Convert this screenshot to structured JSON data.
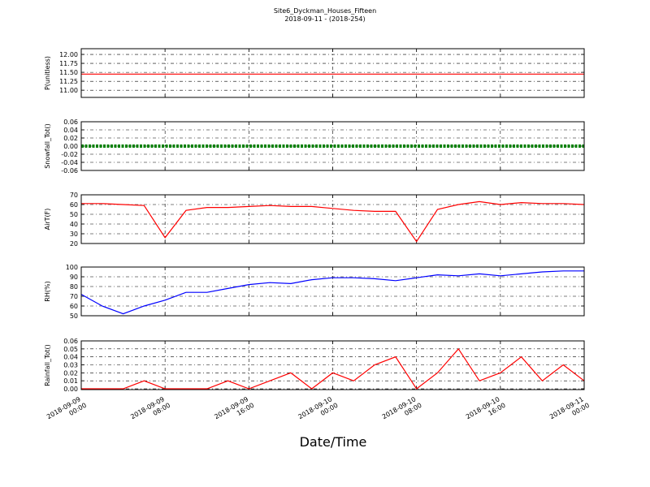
{
  "chart_data": [
    {
      "type": "line",
      "title": "Site6_Dyckman_Houses_Fifteen",
      "subtitle": "2018-09-11 - (2018-254)",
      "ylabel": "P(unitless)",
      "color": "#ff0000",
      "x": [
        "2018-09-09 00:00",
        "2018-09-09 02:00",
        "2018-09-09 04:00",
        "2018-09-09 06:00",
        "2018-09-09 08:00",
        "2018-09-09 10:00",
        "2018-09-09 12:00",
        "2018-09-09 14:00",
        "2018-09-09 16:00",
        "2018-09-09 18:00",
        "2018-09-09 20:00",
        "2018-09-09 22:00",
        "2018-09-10 00:00",
        "2018-09-10 02:00",
        "2018-09-10 04:00",
        "2018-09-10 06:00",
        "2018-09-10 08:00",
        "2018-09-10 10:00",
        "2018-09-10 12:00",
        "2018-09-10 14:00",
        "2018-09-10 16:00",
        "2018-09-10 18:00",
        "2018-09-10 20:00",
        "2018-09-10 22:00",
        "2018-09-11 00:00"
      ],
      "values": [
        11.45,
        11.45,
        11.45,
        11.45,
        11.45,
        11.45,
        11.45,
        11.45,
        11.45,
        11.45,
        11.45,
        11.45,
        11.45,
        11.45,
        11.45,
        11.45,
        11.45,
        11.45,
        11.45,
        11.45,
        11.45,
        11.45,
        11.45,
        11.45,
        11.45
      ],
      "xlim": [
        "2018-09-09 00:00",
        "2018-09-11 00:00"
      ],
      "xticks": [
        "2018-09-09 00:00",
        "2018-09-09 08:00",
        "2018-09-09 16:00",
        "2018-09-10 00:00",
        "2018-09-10 08:00",
        "2018-09-10 16:00",
        "2018-09-11 00:00"
      ],
      "ylim": [
        10.8,
        12.16
      ],
      "yticks": [
        {
          "value": 11,
          "label": "11.00"
        },
        {
          "value": 11.25,
          "label": "11.25"
        },
        {
          "value": 11.5,
          "label": "11.50"
        },
        {
          "value": 11.75,
          "label": "11.75"
        },
        {
          "value": 12,
          "label": "12.00"
        }
      ],
      "grid": true
    },
    {
      "type": "line",
      "ylabel": "Snowfall_Tot()",
      "color": "#008000",
      "x": [
        "2018-09-09 00:00",
        "2018-09-09 02:00",
        "2018-09-09 04:00",
        "2018-09-09 06:00",
        "2018-09-09 08:00",
        "2018-09-09 10:00",
        "2018-09-09 12:00",
        "2018-09-09 14:00",
        "2018-09-09 16:00",
        "2018-09-09 18:00",
        "2018-09-09 20:00",
        "2018-09-09 22:00",
        "2018-09-10 00:00",
        "2018-09-10 02:00",
        "2018-09-10 04:00",
        "2018-09-10 06:00",
        "2018-09-10 08:00",
        "2018-09-10 10:00",
        "2018-09-10 12:00",
        "2018-09-10 14:00",
        "2018-09-10 16:00",
        "2018-09-10 18:00",
        "2018-09-10 20:00",
        "2018-09-10 22:00",
        "2018-09-11 00:00"
      ],
      "values": [
        0,
        0,
        0,
        0,
        0,
        0,
        0,
        0,
        0,
        0,
        0,
        0,
        0,
        0,
        0,
        0,
        0,
        0,
        0,
        0,
        0,
        0,
        0,
        0,
        0
      ],
      "xlim": [
        "2018-09-09 00:00",
        "2018-09-11 00:00"
      ],
      "xticks": [
        "2018-09-09 00:00",
        "2018-09-09 08:00",
        "2018-09-09 16:00",
        "2018-09-10 00:00",
        "2018-09-10 08:00",
        "2018-09-10 16:00",
        "2018-09-11 00:00"
      ],
      "ylim": [
        -0.06,
        0.06
      ],
      "yticks": [
        -0.06,
        -0.04,
        -0.02,
        {
          "value": 0,
          "label": "0.00"
        },
        0.02,
        0.04,
        0.06
      ],
      "grid": true
    },
    {
      "type": "line",
      "ylabel": "AirT(F)",
      "color": "#ff0000",
      "x": [
        "2018-09-09 00:00",
        "2018-09-09 02:00",
        "2018-09-09 04:00",
        "2018-09-09 06:00",
        "2018-09-09 08:00",
        "2018-09-09 10:00",
        "2018-09-09 12:00",
        "2018-09-09 14:00",
        "2018-09-09 16:00",
        "2018-09-09 18:00",
        "2018-09-09 20:00",
        "2018-09-09 22:00",
        "2018-09-10 00:00",
        "2018-09-10 02:00",
        "2018-09-10 04:00",
        "2018-09-10 06:00",
        "2018-09-10 08:00",
        "2018-09-10 10:00",
        "2018-09-10 12:00",
        "2018-09-10 14:00",
        "2018-09-10 16:00",
        "2018-09-10 18:00",
        "2018-09-10 20:00",
        "2018-09-10 22:00",
        "2018-09-11 00:00"
      ],
      "values": [
        61,
        61,
        60,
        59,
        26,
        54,
        57,
        57,
        58,
        59,
        58,
        58,
        56,
        54,
        53,
        53,
        22,
        55,
        60,
        63,
        60,
        62,
        61,
        61,
        60
      ],
      "xlim": [
        "2018-09-09 00:00",
        "2018-09-11 00:00"
      ],
      "xticks": [
        "2018-09-09 00:00",
        "2018-09-09 08:00",
        "2018-09-09 16:00",
        "2018-09-10 00:00",
        "2018-09-10 08:00",
        "2018-09-10 16:00",
        "2018-09-11 00:00"
      ],
      "ylim": [
        20,
        70
      ],
      "yticks": [
        20,
        30,
        40,
        50,
        60,
        70
      ],
      "grid": true
    },
    {
      "type": "line",
      "ylabel": "RH(%)",
      "color": "#0000ff",
      "x": [
        "2018-09-09 00:00",
        "2018-09-09 02:00",
        "2018-09-09 04:00",
        "2018-09-09 06:00",
        "2018-09-09 08:00",
        "2018-09-09 10:00",
        "2018-09-09 12:00",
        "2018-09-09 14:00",
        "2018-09-09 16:00",
        "2018-09-09 18:00",
        "2018-09-09 20:00",
        "2018-09-09 22:00",
        "2018-09-10 00:00",
        "2018-09-10 02:00",
        "2018-09-10 04:00",
        "2018-09-10 06:00",
        "2018-09-10 08:00",
        "2018-09-10 10:00",
        "2018-09-10 12:00",
        "2018-09-10 14:00",
        "2018-09-10 16:00",
        "2018-09-10 18:00",
        "2018-09-10 20:00",
        "2018-09-10 22:00",
        "2018-09-11 00:00"
      ],
      "values": [
        72,
        60,
        52,
        60,
        66,
        74,
        74,
        78,
        82,
        84,
        83,
        87,
        89,
        89,
        88,
        86,
        89,
        92,
        91,
        93,
        91,
        93,
        95,
        96,
        96
      ],
      "xlim": [
        "2018-09-09 00:00",
        "2018-09-11 00:00"
      ],
      "xticks": [
        "2018-09-09 00:00",
        "2018-09-09 08:00",
        "2018-09-09 16:00",
        "2018-09-10 00:00",
        "2018-09-10 08:00",
        "2018-09-10 16:00",
        "2018-09-11 00:00"
      ],
      "ylim": [
        50,
        100
      ],
      "yticks": [
        50,
        60,
        70,
        80,
        90,
        100
      ],
      "grid": true
    },
    {
      "type": "line",
      "ylabel": "Rainfall_Tot()",
      "xlabel": "Date/Time",
      "color": "#ff0000",
      "x": [
        "2018-09-09 00:00",
        "2018-09-09 02:00",
        "2018-09-09 04:00",
        "2018-09-09 06:00",
        "2018-09-09 08:00",
        "2018-09-09 10:00",
        "2018-09-09 12:00",
        "2018-09-09 14:00",
        "2018-09-09 16:00",
        "2018-09-09 18:00",
        "2018-09-09 20:00",
        "2018-09-09 22:00",
        "2018-09-10 00:00",
        "2018-09-10 02:00",
        "2018-09-10 04:00",
        "2018-09-10 06:00",
        "2018-09-10 08:00",
        "2018-09-10 10:00",
        "2018-09-10 12:00",
        "2018-09-10 14:00",
        "2018-09-10 16:00",
        "2018-09-10 18:00",
        "2018-09-10 20:00",
        "2018-09-10 22:00",
        "2018-09-11 00:00"
      ],
      "values": [
        0,
        0,
        0,
        0.01,
        0,
        0,
        0,
        0.01,
        0,
        0.01,
        0.02,
        0,
        0.02,
        0.01,
        0.03,
        0.04,
        0,
        0.02,
        0.05,
        0.01,
        0.02,
        0.04,
        0.01,
        0.03,
        0.01
      ],
      "xlim": [
        "2018-09-09 00:00",
        "2018-09-11 00:00"
      ],
      "xticks": [
        "2018-09-09 00:00",
        "2018-09-09 08:00",
        "2018-09-09 16:00",
        "2018-09-10 00:00",
        "2018-09-10 08:00",
        "2018-09-10 16:00",
        "2018-09-11 00:00"
      ],
      "ylim": [
        -0.001,
        0.06
      ],
      "yticks": [
        {
          "value": 0,
          "label": "0.00"
        },
        0.01,
        0.02,
        0.03,
        0.04,
        0.05,
        0.06
      ],
      "grid": true
    }
  ]
}
